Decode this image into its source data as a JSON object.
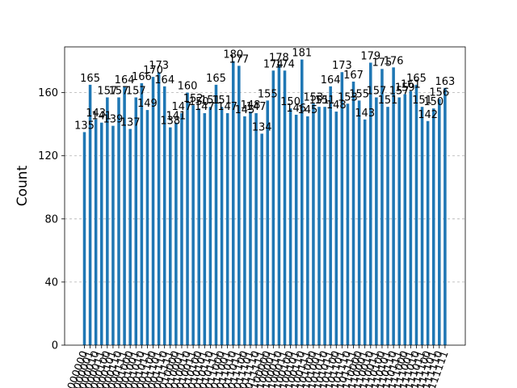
{
  "chart_data": {
    "type": "bar",
    "title": "",
    "xlabel": "",
    "ylabel": "Count",
    "ylim": [
      0,
      180
    ],
    "yticks": [
      0,
      40,
      80,
      120,
      160
    ],
    "grid": "y-dashed",
    "bar_color": "#1f77b4",
    "categories": [
      "000000",
      "000001",
      "000010",
      "000011",
      "000100",
      "000101",
      "000110",
      "000111",
      "001000",
      "001001",
      "001010",
      "001011",
      "001100",
      "001101",
      "001110",
      "001111",
      "010000",
      "010001",
      "010010",
      "010011",
      "010100",
      "010101",
      "010110",
      "010111",
      "011000",
      "011001",
      "011010",
      "011011",
      "011100",
      "011101",
      "011110",
      "011111",
      "100000",
      "100001",
      "100010",
      "100011",
      "100100",
      "100101",
      "100110",
      "100111",
      "101000",
      "101001",
      "101010",
      "101011",
      "101100",
      "101101",
      "101110",
      "101111",
      "110000",
      "110001",
      "110010",
      "110011",
      "110100",
      "110101",
      "110110",
      "110111",
      "111000",
      "111001",
      "111010",
      "111011",
      "111100",
      "111101",
      "111110",
      "111111"
    ],
    "values": [
      135,
      165,
      143,
      141,
      157,
      139,
      157,
      164,
      137,
      157,
      166,
      149,
      170,
      173,
      164,
      138,
      141,
      147,
      160,
      152,
      150,
      147,
      151,
      165,
      151,
      147,
      180,
      177,
      145,
      148,
      147,
      134,
      155,
      174,
      178,
      174,
      150,
      146,
      181,
      145,
      153,
      151,
      151,
      164,
      148,
      173,
      153,
      167,
      155,
      143,
      179,
      157,
      175,
      151,
      176,
      157,
      159,
      161,
      165,
      151,
      142,
      150,
      156,
      163
    ]
  }
}
